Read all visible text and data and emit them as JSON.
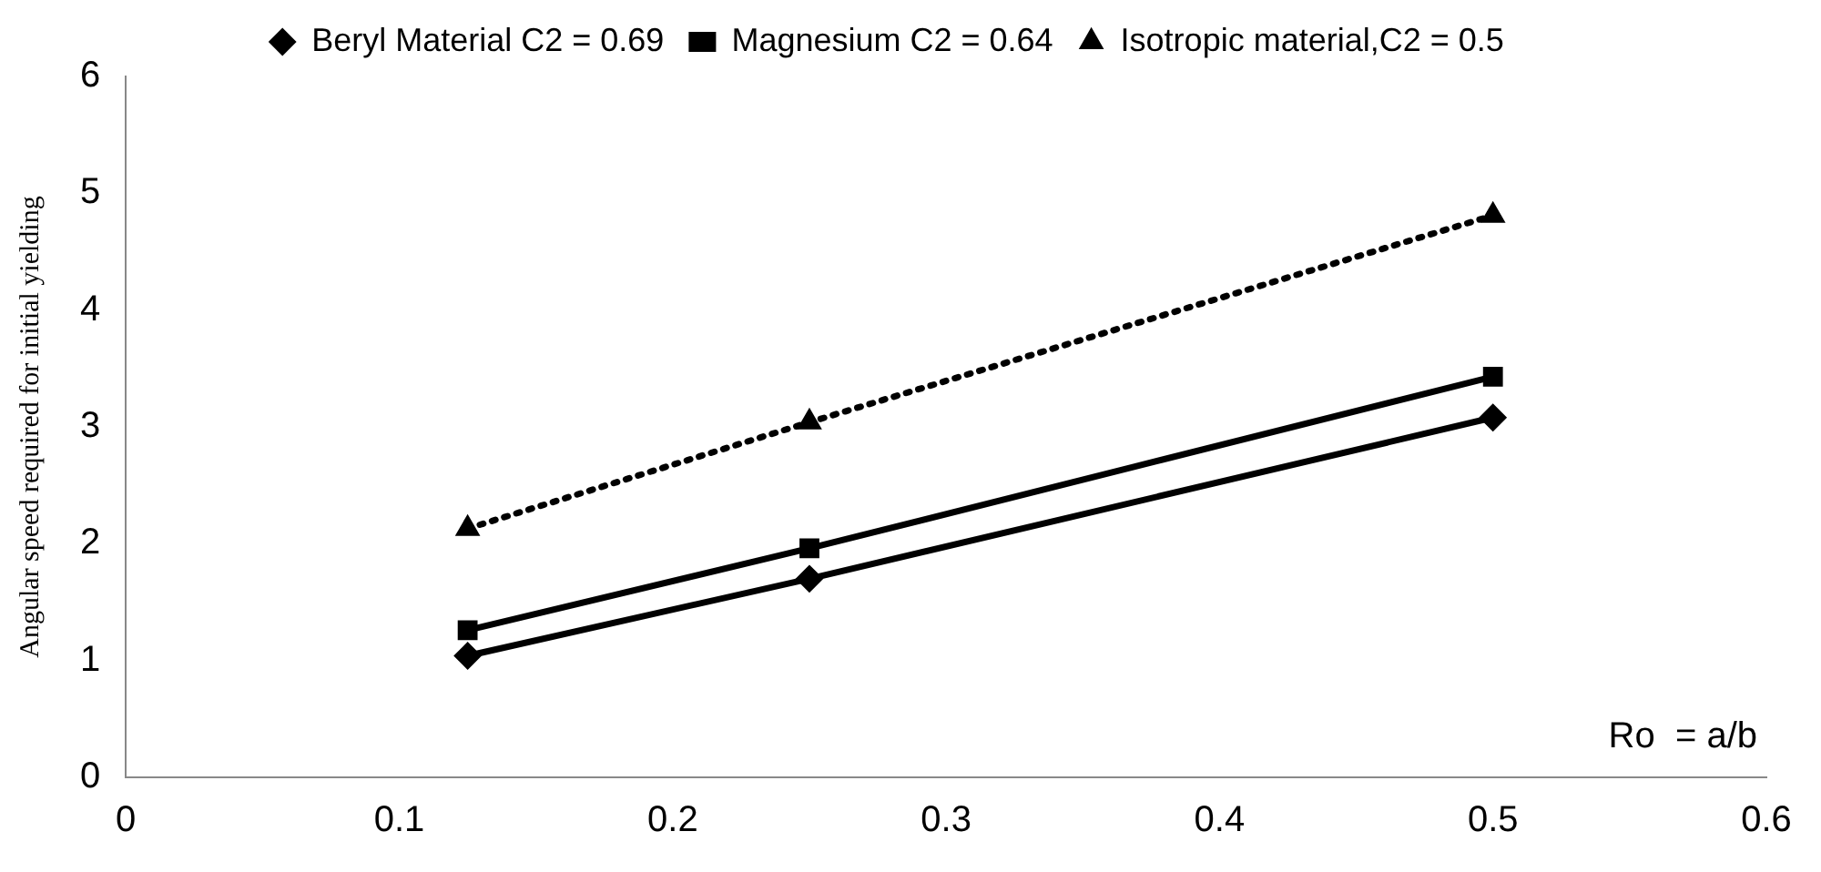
{
  "chart_data": {
    "type": "line",
    "xlabel": "Ro  = a/b",
    "ylabel": "Angular speed required for initial yielding",
    "x": [
      0.125,
      0.25,
      0.5
    ],
    "series": [
      {
        "name": "Beryl Material C2 = 0.69",
        "color": "#000000",
        "values": [
          1.04,
          1.7,
          3.08
        ],
        "marker": "diamond",
        "line_style": "solid"
      },
      {
        "name": "Magnesium C2 = 0.64",
        "color": "#000000",
        "values": [
          1.26,
          1.96,
          3.43
        ],
        "marker": "square",
        "line_style": "solid"
      },
      {
        "name": "Isotropic material,C2 = 0.5",
        "color": "#000000",
        "values": [
          2.13,
          3.04,
          4.81
        ],
        "marker": "triangle",
        "line_style": "dotted"
      }
    ],
    "xlim": [
      0,
      0.6
    ],
    "xticks": [
      0,
      0.1,
      0.2,
      0.3,
      0.4,
      0.5,
      0.6
    ],
    "ylim": [
      0,
      6
    ],
    "yticks": [
      0,
      1,
      2,
      3,
      4,
      5,
      6
    ],
    "grid": false,
    "legend": "top"
  }
}
